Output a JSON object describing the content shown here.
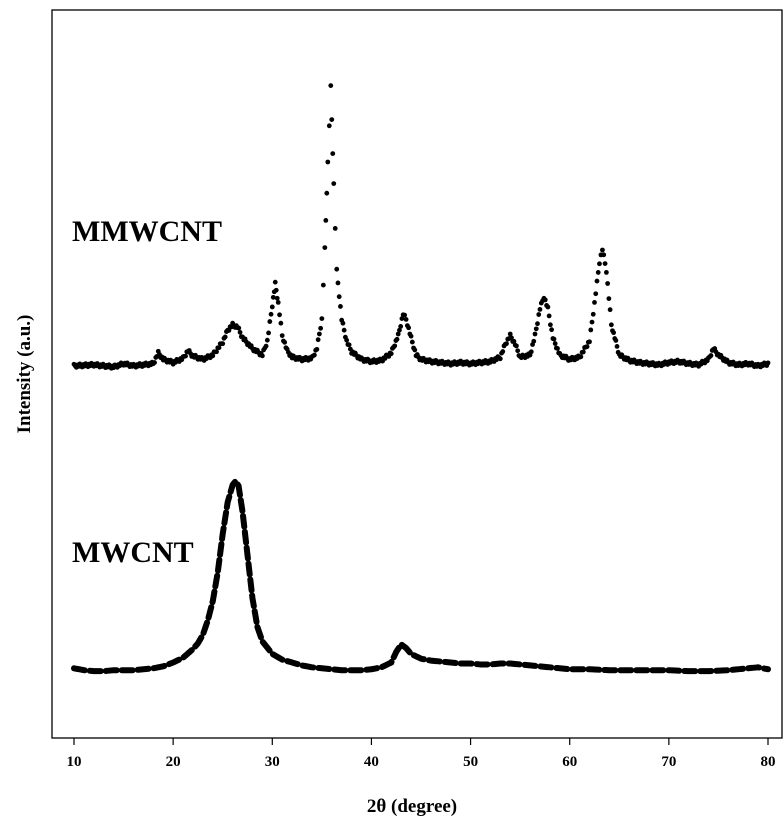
{
  "chart_data": {
    "type": "line",
    "xlabel": "2θ (degree)",
    "ylabel": "Intensity (a.u.)",
    "xlim": [
      10,
      80
    ],
    "xticks": [
      "10",
      "20",
      "30",
      "40",
      "50",
      "60",
      "70",
      "80"
    ],
    "y_tick_labels": false,
    "grid": false,
    "legend": "none",
    "series": [
      {
        "name": "MMWCNT",
        "marker": "dots",
        "color": "#000000",
        "x": [
          10,
          12,
          14,
          15,
          16,
          17,
          18,
          18.5,
          19,
          20,
          21,
          21.5,
          22,
          23,
          24,
          25,
          25.5,
          26,
          26.5,
          27,
          28,
          29,
          29.5,
          30,
          30.3,
          30.6,
          31,
          31.5,
          32,
          33,
          34,
          34.5,
          35,
          35.3,
          35.6,
          35.9,
          36.2,
          36.5,
          37,
          37.5,
          38,
          39,
          40,
          41,
          42,
          42.7,
          43.2,
          43.5,
          44,
          44.5,
          45,
          46,
          47,
          48,
          49,
          50,
          51,
          52,
          53,
          53.5,
          54,
          54.5,
          55,
          56,
          56.5,
          57,
          57.4,
          57.8,
          58.3,
          59,
          60,
          61,
          62,
          62.5,
          63,
          63.3,
          63.7,
          64.2,
          65,
          66,
          67,
          68,
          69,
          70,
          71,
          72,
          73,
          74,
          74.5,
          75,
          76,
          77,
          78,
          79,
          80
        ],
        "y": [
          2,
          3,
          1,
          4,
          2,
          3,
          4,
          14,
          8,
          5,
          9,
          16,
          11,
          8,
          12,
          24,
          35,
          40,
          38,
          28,
          18,
          12,
          25,
          58,
          78,
          60,
          30,
          16,
          10,
          8,
          9,
          18,
          45,
          110,
          190,
          260,
          170,
          90,
          45,
          25,
          15,
          8,
          6,
          7,
          14,
          30,
          50,
          45,
          28,
          12,
          8,
          6,
          5,
          4,
          5,
          4,
          5,
          6,
          10,
          22,
          30,
          22,
          10,
          12,
          30,
          55,
          66,
          55,
          28,
          12,
          8,
          10,
          25,
          60,
          98,
          110,
          90,
          40,
          12,
          7,
          5,
          4,
          3,
          5,
          6,
          4,
          3,
          8,
          18,
          12,
          5,
          3,
          4,
          2,
          4
        ]
      },
      {
        "name": "MWCNT",
        "marker": "dashes",
        "color": "#000000",
        "x": [
          10,
          11,
          12,
          13,
          14,
          15,
          16,
          17,
          18,
          19,
          20,
          21,
          22,
          22.5,
          23,
          23.5,
          24,
          24.5,
          25,
          25.5,
          26,
          26.3,
          26.6,
          27,
          27.5,
          28,
          28.5,
          29,
          30,
          31,
          32,
          33,
          34,
          35,
          36,
          37,
          38,
          39,
          40,
          41,
          42,
          42.5,
          43,
          43.5,
          44,
          45,
          46,
          47,
          48,
          49,
          50,
          51,
          52,
          53,
          54,
          55,
          56,
          57,
          58,
          59,
          60,
          62,
          64,
          66,
          68,
          70,
          72,
          74,
          76,
          78,
          79,
          80
        ],
        "y": [
          7,
          5,
          4,
          4,
          5,
          5,
          5,
          6,
          7,
          9,
          13,
          18,
          27,
          33,
          42,
          57,
          77,
          107,
          147,
          180,
          198,
          202,
          197,
          170,
          125,
          80,
          50,
          35,
          22,
          16,
          13,
          10,
          8,
          7,
          6,
          5,
          5,
          5,
          6,
          8,
          13,
          24,
          32,
          28,
          22,
          17,
          15,
          14,
          13,
          12,
          12,
          11,
          11,
          12,
          12,
          11,
          10,
          9,
          8,
          7,
          6,
          6,
          5,
          5,
          5,
          5,
          4,
          4,
          5,
          7,
          8,
          6
        ]
      }
    ]
  }
}
